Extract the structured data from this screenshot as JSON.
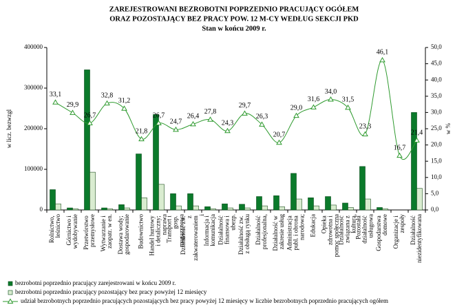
{
  "chart_data": {
    "type": "bar-line",
    "title": [
      "ZAREJESTROWANI BEZROBOTNI POPRZEDNIO PRACUJĄCY OGÓŁEM",
      "ORAZ POZOSTAJĄCY BEZ PRACY POW. 12 M-CY WEDŁUG SEKCJI PKD",
      "Stan w końcu 2009 r."
    ],
    "ylabel": "w licz. bezwzgl",
    "y2label": "w %",
    "categories": [
      "Rolnictwo, leśnictwo",
      "Górnictwo i wydobywanie",
      "Przetwórstwo przemysłowe",
      "Wytwarzanie i zaopatr. w en.",
      "Dostawa wody; gospodarowanie",
      "Budownictwo",
      "Handel hurtowy i detaliczny; naprawa",
      "Transport i gosp. magazynowa",
      "Działalność zw. z zakwaterowaniem i",
      "Informacja i komunikacja",
      "Działalność finansowa i ubezp.",
      "Działalność zw. z obsługą rynku",
      "Działalność profesjonalna,",
      "Działalność w zakresie usług",
      "Administracja publ. i obrona narodowa;",
      "Edukacja",
      "Opieka zdrowotna i pomoc społeczna",
      "Działalność związana z kulturą,",
      "Pozostała działalność usługowa",
      "Gospodarstwa domowe",
      "Organizacje i zespoły",
      "Działalność niezidentyfikowana"
    ],
    "series": [
      {
        "name": "bezrobotni poprzednio pracujący zarejestrowani w końcu 2009 r.",
        "color": "#0b7a2b",
        "values": [
          50000,
          5000,
          345000,
          5000,
          13000,
          138000,
          235000,
          40000,
          40000,
          8000,
          15000,
          14000,
          33000,
          35000,
          90000,
          30000,
          33000,
          17000,
          107000,
          6000,
          0,
          240000
        ]
      },
      {
        "name": "bezrobotni poprzednio pracujący pozostający bez pracy powyżej 12 miesięcy",
        "color": "#d9ecd0",
        "values": [
          15000,
          3000,
          93000,
          3000,
          5000,
          30000,
          63000,
          10000,
          10000,
          3000,
          5000,
          5000,
          10000,
          8000,
          27000,
          10000,
          12000,
          6000,
          27000,
          3000,
          0,
          53000
        ]
      },
      {
        "name": "udział bezrobotnych poprzednio pracujących pozostających bez pracy powyżej 12 miesięcy w liczbie bezrobotnych poprzednio pracujących ogółem",
        "color": "#2e9a2e",
        "axis": "y2",
        "values": [
          33.1,
          29.9,
          26.7,
          32.8,
          31.2,
          21.8,
          26.7,
          24.7,
          26.4,
          27.8,
          24.3,
          29.7,
          26.3,
          20.7,
          29.0,
          31.6,
          34.0,
          31.5,
          23.3,
          46.1,
          16.7,
          21.4
        ],
        "value_labels": [
          "33,1",
          "29,9",
          "26,7",
          "32,8",
          "31,2",
          "21,8",
          "26,7",
          "24,7",
          "26,4",
          "27,8",
          "24,3",
          "29,7",
          "26,3",
          "20,7",
          "29,0",
          "31,6",
          "34,0",
          "31,5",
          "23,3",
          "46,1",
          "16,7",
          "21,4"
        ]
      }
    ],
    "ylim": [
      0,
      400000
    ],
    "yticks": [
      0,
      100000,
      200000,
      300000,
      400000
    ],
    "y2lim": [
      0,
      50
    ],
    "y2ticks": [
      {
        "value": 0,
        "label": "0,0"
      },
      {
        "value": 5,
        "label": "5,0"
      },
      {
        "value": 10,
        "label": "10,0"
      },
      {
        "value": 15,
        "label": "15,0"
      },
      {
        "value": 20,
        "label": "20,0"
      },
      {
        "value": 25,
        "label": "25,0"
      },
      {
        "value": 30,
        "label": "30,0"
      },
      {
        "value": 35,
        "label": "35,0"
      },
      {
        "value": 40,
        "label": "40,0"
      },
      {
        "value": 45,
        "label": "45,0"
      },
      {
        "value": 50,
        "label": "50,0"
      }
    ]
  }
}
